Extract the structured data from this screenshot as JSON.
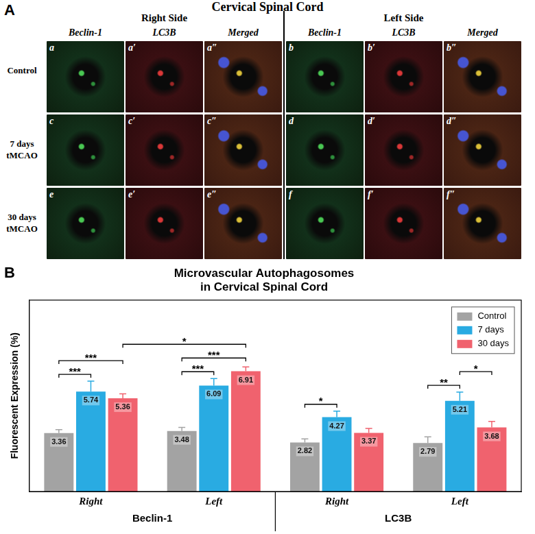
{
  "panel_a": {
    "panel_label": "A",
    "title": "Cervical Spinal Cord",
    "sides": [
      {
        "label": "Right Side",
        "columns": [
          "Beclin-1",
          "LC3B",
          "Merged"
        ]
      },
      {
        "label": "Left Side",
        "columns": [
          "Beclin-1",
          "LC3B",
          "Merged"
        ]
      }
    ],
    "rows": [
      "Control",
      "7 days tMCAO",
      "30 days tMCAO"
    ],
    "panels": [
      [
        "a",
        "a′",
        "a″",
        "b",
        "b′",
        "b″"
      ],
      [
        "c",
        "c′",
        "c″",
        "d",
        "d′",
        "d″"
      ],
      [
        "e",
        "e′",
        "e″",
        "f",
        "f′",
        "f″"
      ]
    ]
  },
  "chart_data": {
    "type": "bar",
    "panel_label": "B",
    "title": [
      "Microvascular Autophagosomes",
      "in Cervical Spinal Cord"
    ],
    "y_label": "Fluorescent Expression (%)",
    "categories": [
      "Right",
      "Left",
      "Right",
      "Left"
    ],
    "groups": [
      {
        "label": "Beclin-1",
        "categories": [
          0,
          1
        ]
      },
      {
        "label": "LC3B",
        "categories": [
          2,
          3
        ]
      }
    ],
    "series": [
      {
        "name": "Control",
        "color": "#a3a3a3",
        "values": [
          3.36,
          3.48,
          2.82,
          2.79
        ],
        "errors": [
          0.2,
          0.2,
          0.2,
          0.35
        ]
      },
      {
        "name": "7 days",
        "color": "#29abe2",
        "values": [
          5.74,
          6.09,
          4.27,
          5.21
        ],
        "errors": [
          0.6,
          0.4,
          0.35,
          0.5
        ]
      },
      {
        "name": "30 days",
        "color": "#f0626e",
        "values": [
          5.36,
          6.91,
          3.37,
          3.68
        ],
        "errors": [
          0.25,
          0.25,
          0.25,
          0.35
        ]
      }
    ],
    "ylim": [
      0,
      11
    ],
    "tick_labels": "x",
    "grid": false,
    "legend": "upper right",
    "data_labels": true,
    "annotations": [
      {
        "from": [
          0,
          0
        ],
        "to": [
          0,
          1
        ],
        "label": "***"
      },
      {
        "from": [
          0,
          0
        ],
        "to": [
          0,
          2
        ],
        "label": "***"
      },
      {
        "from": [
          0,
          2
        ],
        "to": [
          1,
          2
        ],
        "label": "*"
      },
      {
        "from": [
          1,
          0
        ],
        "to": [
          1,
          1
        ],
        "label": "***"
      },
      {
        "from": [
          1,
          0
        ],
        "to": [
          1,
          2
        ],
        "label": "***"
      },
      {
        "from": [
          2,
          0
        ],
        "to": [
          2,
          1
        ],
        "label": "*"
      },
      {
        "from": [
          3,
          0
        ],
        "to": [
          3,
          1
        ],
        "label": "**"
      },
      {
        "from": [
          3,
          1
        ],
        "to": [
          3,
          2
        ],
        "label": "*"
      }
    ]
  }
}
